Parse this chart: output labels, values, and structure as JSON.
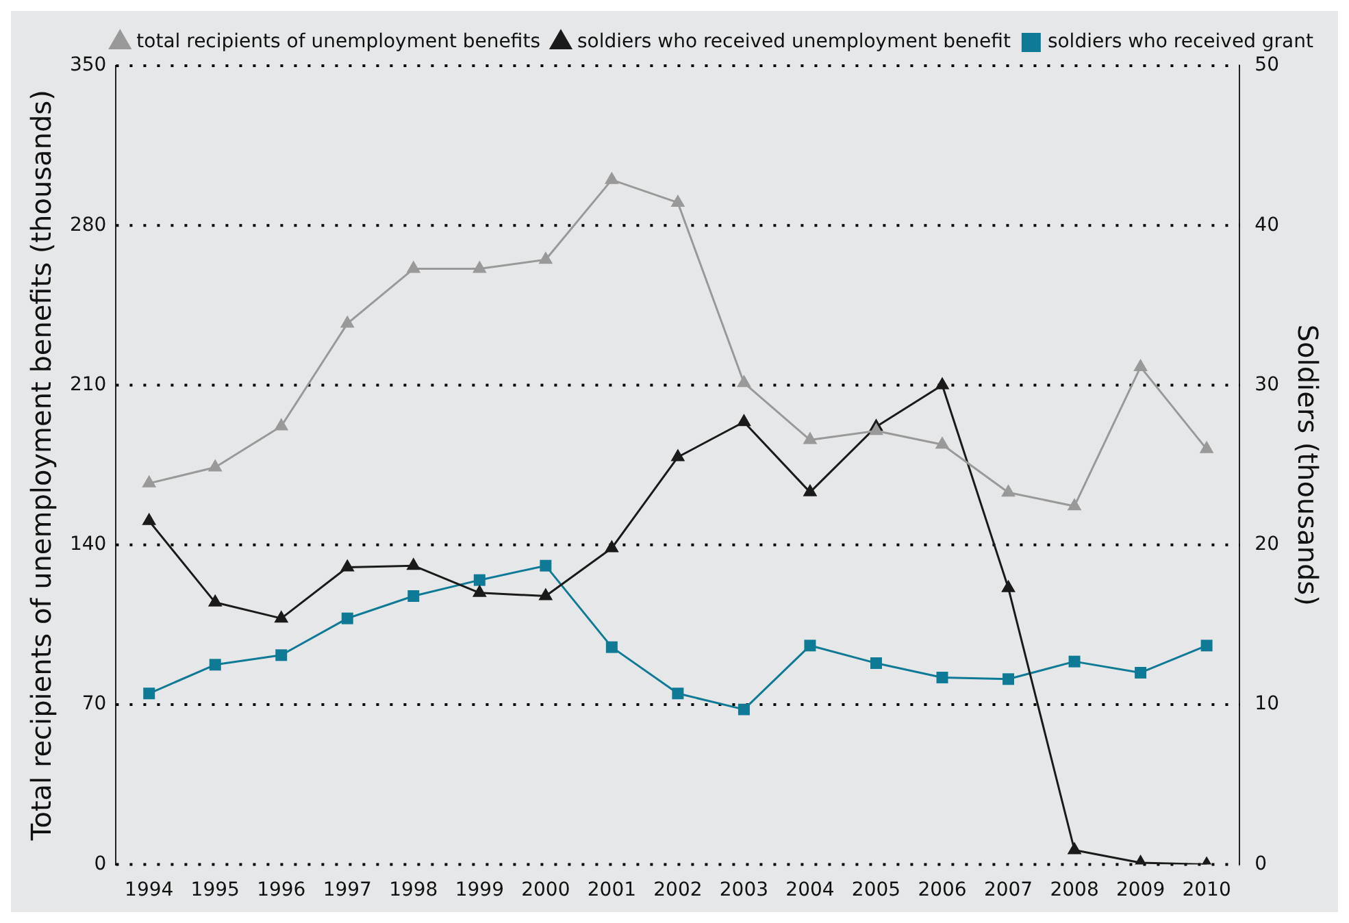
{
  "chart_data": {
    "type": "line",
    "xlabel": null,
    "ylabel": "Total recipients of unemployment benefits (thousands)",
    "y2label": "Soldiers (thousands)",
    "categories": [
      "1994",
      "1995",
      "1996",
      "1997",
      "1998",
      "1999",
      "2000",
      "2001",
      "2002",
      "2003",
      "2004",
      "2005",
      "2006",
      "2007",
      "2008",
      "2009",
      "2010"
    ],
    "series": [
      {
        "name": "total recipients of unemployment benefits",
        "color": "#999999",
        "marker": "triangle",
        "values": [
          167,
          174,
          192,
          237,
          261,
          261,
          265,
          300,
          290,
          211,
          186,
          190,
          184,
          163,
          157,
          218,
          182
        ]
      },
      {
        "name": "soldiers who received unemployment benefit",
        "color": "#1a1a1a",
        "marker": "triangle",
        "axis": "y2",
        "values": [
          21.5,
          16.4,
          15.4,
          18.6,
          18.7,
          17.0,
          16.8,
          19.8,
          25.5,
          27.7,
          23.3,
          27.4,
          30.0,
          17.3,
          0.9,
          0.1,
          0
        ]
      },
      {
        "name": "soldiers who received grant",
        "color": "#0e7a96",
        "marker": "square",
        "axis": "y2",
        "values": [
          10.7,
          12.5,
          13.1,
          15.4,
          16.8,
          17.8,
          18.7,
          13.6,
          10.7,
          9.7,
          13.7,
          12.6,
          11.7,
          11.6,
          12.7,
          12.0,
          13.7
        ]
      }
    ],
    "ylim": [
      0,
      350
    ],
    "yticks": [
      0,
      70,
      140,
      210,
      280,
      350
    ],
    "y2lim": [
      0,
      50
    ],
    "y2ticks": [
      0,
      10,
      20,
      30,
      40,
      50
    ],
    "grid": "y",
    "legend": "top right",
    "line_style": "solid"
  }
}
